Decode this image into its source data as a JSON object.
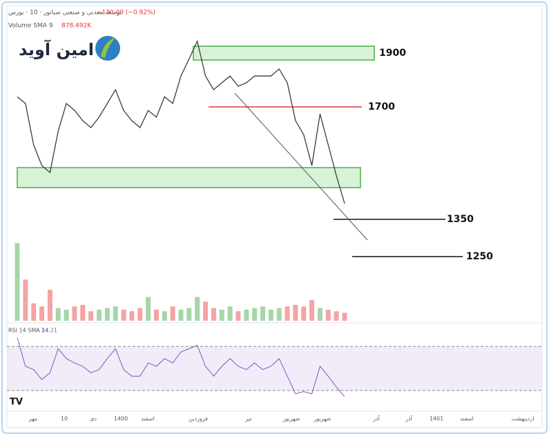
{
  "header": {
    "title": "توسعه معدنی و صنعتی صبانور · 10 · بورس",
    "change": "−130.00 (−0.92%)",
    "volume_label": "Volume SMA 9",
    "volume_value": "878.492K",
    "logo": "امین آوید"
  },
  "annotations": [
    "1900",
    "1700",
    "1350",
    "1250"
  ],
  "chart_data": {
    "type": "line",
    "ylim": [
      905,
      2072
    ],
    "series": [
      {
        "name": "price",
        "color": "#3a3a3a",
        "values": [
          1738,
          1713,
          1559,
          1482,
          1456,
          1610,
          1713,
          1687,
          1649,
          1623,
          1662,
          1713,
          1764,
          1687,
          1649,
          1623,
          1687,
          1662,
          1738,
          1713,
          1815,
          1879,
          1944,
          1815,
          1764,
          1790,
          1815,
          1777,
          1790,
          1815,
          1815,
          1815,
          1841,
          1790,
          1649,
          1597,
          1482,
          1674,
          1559,
          1444,
          1341
        ]
      }
    ],
    "volume": {
      "ylim": [
        0,
        5000
      ],
      "values": [
        4900,
        2600,
        1100,
        900,
        1950,
        800,
        700,
        900,
        1000,
        600,
        700,
        800,
        900,
        700,
        600,
        800,
        1500,
        700,
        600,
        900,
        700,
        800,
        1500,
        1200,
        800,
        700,
        900,
        600,
        700,
        800,
        900,
        700,
        800,
        900,
        1000,
        900,
        1300,
        800,
        700,
        600,
        500
      ]
    },
    "rsi": {
      "label": "RSI 14 SMA 14",
      "value_label": "24.21",
      "ylim": [
        15,
        89
      ],
      "bands": [
        70,
        30
      ],
      "values": [
        78,
        52,
        49,
        40,
        46,
        68,
        59,
        55,
        52,
        46,
        49,
        59,
        68,
        49,
        43,
        43,
        55,
        52,
        59,
        55,
        65,
        68,
        71,
        52,
        43,
        52,
        59,
        52,
        49,
        55,
        49,
        52,
        59,
        43,
        27,
        29,
        27,
        52,
        43,
        33,
        24.21
      ]
    },
    "x_labels": [
      "مهر",
      "10",
      "دی",
      "1400",
      "اسفند",
      "فروردین",
      "تیر",
      "شهریور",
      "شهریور",
      "آذر",
      "آذر",
      "1401",
      "اسفند",
      "اردیبهشت"
    ]
  }
}
